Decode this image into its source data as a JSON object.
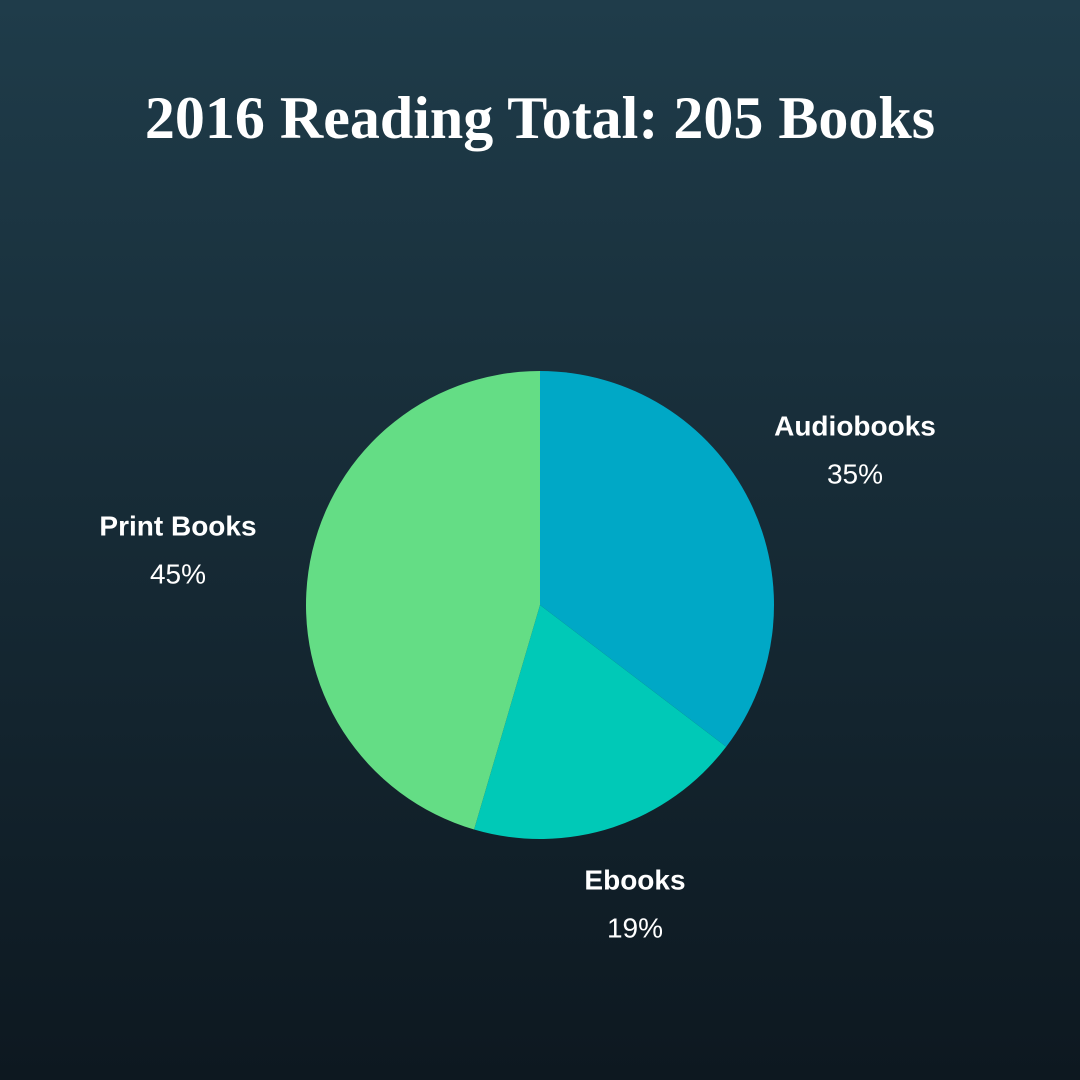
{
  "chart_data": {
    "type": "pie",
    "title": "2016 Reading Total: 205 Books",
    "categories": [
      "Audiobooks",
      "Ebooks",
      "Print Books"
    ],
    "values": [
      35,
      19,
      45
    ],
    "value_labels": [
      "35%",
      "19%",
      "45%"
    ],
    "colors": [
      "#00a8c6",
      "#00c9b7",
      "#64dd85"
    ]
  }
}
